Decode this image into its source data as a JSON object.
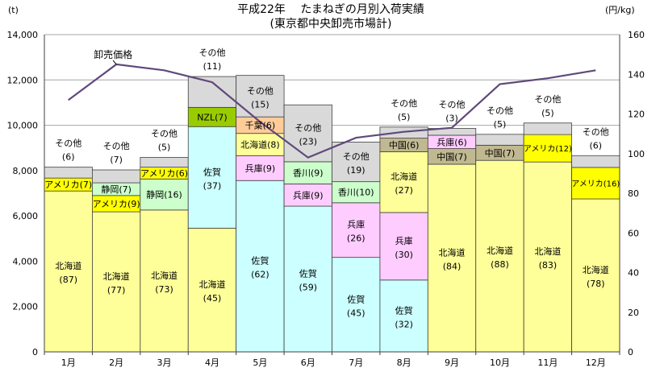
{
  "chart_data": {
    "type": "bar",
    "subtype": "stacked-bar-with-line",
    "title": "平成22年　 たまねぎの月別入荷実績",
    "subtitle": "(東京都中央卸売市場計)",
    "left_unit": "(t)",
    "right_unit": "(円/kg)",
    "ylim": [
      0,
      14000
    ],
    "y_ticks": [
      0,
      2000,
      4000,
      6000,
      8000,
      10000,
      12000,
      14000
    ],
    "y_tick_labels": [
      "0",
      "2,000",
      "4,000",
      "6,000",
      "8,000",
      "10,000",
      "12,000",
      "14,000"
    ],
    "y2lim": [
      0,
      160
    ],
    "y2_ticks": [
      0,
      20,
      40,
      60,
      80,
      100,
      120,
      140,
      160
    ],
    "y2_tick_labels": [
      "0",
      "20",
      "40",
      "60",
      "80",
      "100",
      "120",
      "140",
      "160"
    ],
    "grid": true,
    "categories": [
      "1月",
      "2月",
      "3月",
      "4月",
      "5月",
      "6月",
      "7月",
      "8月",
      "9月",
      "10月",
      "11月",
      "12月"
    ],
    "colors": {
      "北海道": "#FFFF99",
      "佐賀": "#CCFFFF",
      "アメリカ": "#FFFF00",
      "静岡": "#CCFFCC",
      "NZL": "#99CC00",
      "兵庫": "#FFCCFF",
      "千葉": "#FFCC99",
      "香川": "#CCFFCC",
      "中国": "#C0B890",
      "その他": "#D9D9D9",
      "line": "#5F497A"
    },
    "stacks": [
      {
        "month": "1月",
        "total": 8150,
        "segments": [
          {
            "name": "北海道",
            "value": 7100,
            "label": "北海道",
            "share": "(87)"
          },
          {
            "name": "アメリカ",
            "value": 570,
            "label": "アメリカ(7)"
          },
          {
            "name": "その他",
            "value": 480,
            "label": "その他",
            "share": "(6)"
          }
        ]
      },
      {
        "month": "2月",
        "total": 8030,
        "segments": [
          {
            "name": "北海道",
            "value": 6180,
            "label": "北海道",
            "share": "(77)"
          },
          {
            "name": "アメリカ",
            "value": 720,
            "label": "アメリカ(9)"
          },
          {
            "name": "静岡",
            "value": 560,
            "label": "静岡(7)"
          },
          {
            "name": "その他",
            "value": 570,
            "label": "その他",
            "share": "(7)"
          }
        ]
      },
      {
        "month": "3月",
        "total": 8580,
        "segments": [
          {
            "name": "北海道",
            "value": 6260,
            "label": "北海道",
            "share": "(73)"
          },
          {
            "name": "静岡",
            "value": 1370,
            "label": "静岡(16)"
          },
          {
            "name": "アメリカ",
            "value": 520,
            "label": "アメリカ(6)"
          },
          {
            "name": "その他",
            "value": 430,
            "label": "その他",
            "share": "(5)"
          }
        ]
      },
      {
        "month": "4月",
        "total": 12150,
        "segments": [
          {
            "name": "北海道",
            "value": 5460,
            "label": "北海道",
            "share": "(45)"
          },
          {
            "name": "佐賀",
            "value": 4480,
            "label": "佐賀",
            "share": "(37)"
          },
          {
            "name": "NZL",
            "value": 850,
            "label": "NZL(7)"
          },
          {
            "name": "その他",
            "value": 1360,
            "label": "その他",
            "share": "(11)"
          }
        ]
      },
      {
        "month": "5月",
        "total": 12200,
        "segments": [
          {
            "name": "佐賀",
            "value": 7560,
            "label": "佐賀",
            "share": "(62)"
          },
          {
            "name": "兵庫",
            "value": 1100,
            "label": "兵庫(9)"
          },
          {
            "name": "北海道",
            "value": 980,
            "label": "北海道(8)"
          },
          {
            "name": "千葉",
            "value": 730,
            "label": "千葉(6)"
          },
          {
            "name": "その他",
            "value": 1830,
            "label": "その他",
            "share": "(15)"
          }
        ]
      },
      {
        "month": "6月",
        "total": 10900,
        "segments": [
          {
            "name": "佐賀",
            "value": 6430,
            "label": "佐賀",
            "share": "(59)"
          },
          {
            "name": "兵庫",
            "value": 980,
            "label": "兵庫(9)"
          },
          {
            "name": "香川",
            "value": 980,
            "label": "香川(9)"
          },
          {
            "name": "その他",
            "value": 2510,
            "label": "その他",
            "share": "(23)"
          }
        ]
      },
      {
        "month": "7月",
        "total": 9260,
        "segments": [
          {
            "name": "佐賀",
            "value": 4170,
            "label": "佐賀",
            "share": "(45)"
          },
          {
            "name": "兵庫",
            "value": 2410,
            "label": "兵庫",
            "share": "(26)"
          },
          {
            "name": "香川",
            "value": 930,
            "label": "香川(10)"
          },
          {
            "name": "その他",
            "value": 1750,
            "label": "その他",
            "share": "(19)"
          }
        ]
      },
      {
        "month": "8月",
        "total": 9920,
        "segments": [
          {
            "name": "佐賀",
            "value": 3170,
            "label": "佐賀",
            "share": "(32)"
          },
          {
            "name": "兵庫",
            "value": 2980,
            "label": "兵庫",
            "share": "(30)"
          },
          {
            "name": "北海道",
            "value": 2680,
            "label": "北海道",
            "share": "(27)"
          },
          {
            "name": "中国",
            "value": 600,
            "label": "中国(6)"
          },
          {
            "name": "その他",
            "value": 490,
            "label": "その他",
            "share": "(5)"
          }
        ]
      },
      {
        "month": "9月",
        "total": 9860,
        "segments": [
          {
            "name": "北海道",
            "value": 8280,
            "label": "北海道",
            "share": "(84)"
          },
          {
            "name": "中国",
            "value": 690,
            "label": "中国(7)"
          },
          {
            "name": "兵庫",
            "value": 590,
            "label": "兵庫(6)"
          },
          {
            "name": "その他",
            "value": 300,
            "label": "その他",
            "share": "(3)"
          }
        ]
      },
      {
        "month": "10月",
        "total": 9600,
        "segments": [
          {
            "name": "北海道",
            "value": 8450,
            "label": "北海道",
            "share": "(88)"
          },
          {
            "name": "中国",
            "value": 670,
            "label": "中国(7)"
          },
          {
            "name": "その他",
            "value": 480,
            "label": "その他",
            "share": "(5)"
          }
        ]
      },
      {
        "month": "11月",
        "total": 10100,
        "segments": [
          {
            "name": "北海道",
            "value": 8380,
            "label": "北海道",
            "share": "(83)"
          },
          {
            "name": "アメリカ",
            "value": 1210,
            "label": "アメリカ(12)"
          },
          {
            "name": "その他",
            "value": 510,
            "label": "その他",
            "share": "(5)"
          }
        ]
      },
      {
        "month": "12月",
        "total": 8660,
        "segments": [
          {
            "name": "北海道",
            "value": 6750,
            "label": "北海道",
            "share": "(78)"
          },
          {
            "name": "アメリカ",
            "value": 1390,
            "label": "アメリカ(16)"
          },
          {
            "name": "その他",
            "value": 520,
            "label": "その他",
            "share": "(6)"
          }
        ]
      }
    ],
    "price_line": {
      "name": "卸売価格",
      "values": [
        127,
        145,
        142,
        136,
        116,
        98,
        108,
        111,
        113,
        135,
        138,
        142
      ]
    }
  }
}
